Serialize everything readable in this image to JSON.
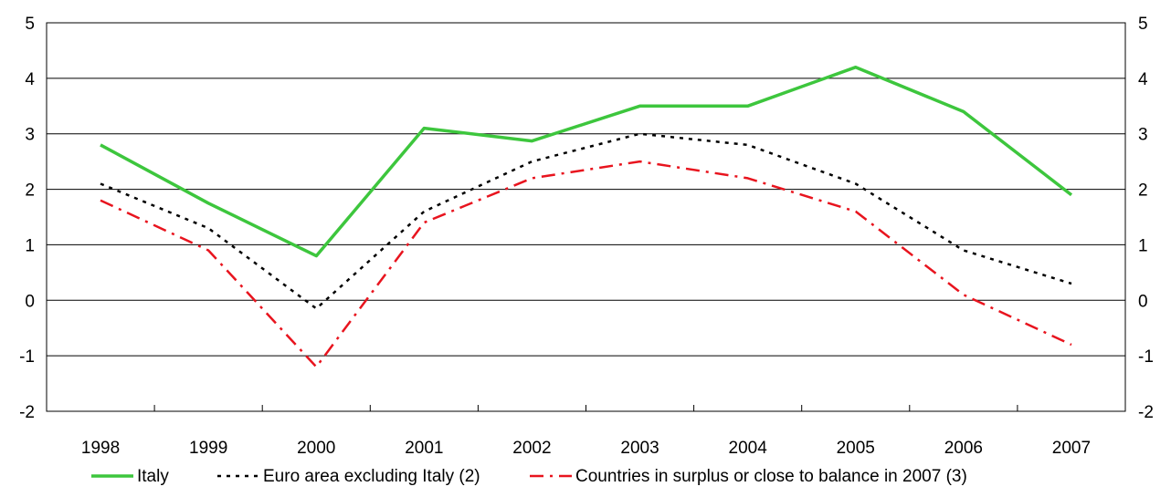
{
  "chart_data": {
    "type": "line",
    "title": "",
    "xlabel": "",
    "ylabel": "",
    "categories": [
      "1998",
      "1999",
      "2000",
      "2001",
      "2002",
      "2003",
      "2004",
      "2005",
      "2006",
      "2007"
    ],
    "ylim": [
      -2,
      5
    ],
    "yticks": [
      5,
      4,
      3,
      2,
      1,
      0,
      -1,
      -2
    ],
    "grid": "horizontal",
    "legend_position": "bottom",
    "series": [
      {
        "name": "Italy",
        "color": "#3dc63d",
        "style": "solid",
        "values": [
          2.8,
          1.75,
          0.8,
          3.1,
          2.87,
          3.5,
          3.5,
          4.2,
          3.4,
          1.9
        ]
      },
      {
        "name": "Euro area excluding Italy (2)",
        "color": "#000000",
        "style": "dotted",
        "values": [
          2.1,
          1.3,
          -0.15,
          1.6,
          2.5,
          3.0,
          2.8,
          2.1,
          0.9,
          0.3
        ]
      },
      {
        "name": "Countries in surplus or close to balance in 2007 (3)",
        "color": "#e8141e",
        "style": "dashdot",
        "values": [
          1.8,
          0.9,
          -1.2,
          1.4,
          2.2,
          2.5,
          2.2,
          1.6,
          0.1,
          -0.8
        ]
      }
    ]
  }
}
